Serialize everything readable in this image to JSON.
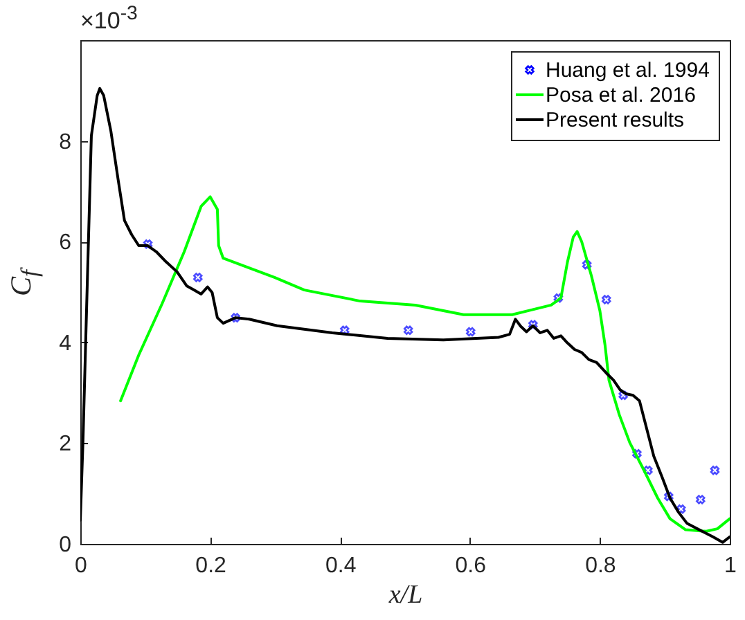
{
  "chart_data": {
    "type": "line",
    "xlabel": "x/L",
    "ylabel": "C$_{f}$",
    "annotations": [
      "×10$^{-3}$"
    ],
    "xlim": [
      0,
      1
    ],
    "xticks": [
      0,
      0.2,
      0.4,
      0.6,
      0.8,
      1
    ],
    "ylim": [
      0,
      10
    ],
    "yticks": [
      0,
      2,
      4,
      6,
      8
    ],
    "grid": false,
    "legend": "top right",
    "series": [
      {
        "name": "Huang et al. 1994",
        "type": "scatter",
        "marker": "cross",
        "color": "#0000ff",
        "x": [
          0.104,
          0.181,
          0.239,
          0.407,
          0.505,
          0.601,
          0.697,
          0.736,
          0.78,
          0.81,
          0.836,
          0.857,
          0.874,
          0.906,
          0.925,
          0.955,
          0.977
        ],
        "values": [
          5.95,
          5.29,
          4.49,
          4.24,
          4.24,
          4.21,
          4.35,
          4.88,
          5.54,
          4.85,
          2.95,
          1.79,
          1.46,
          0.94,
          0.69,
          0.88,
          1.46
        ]
      },
      {
        "name": "Posa et al. 2016",
        "color": "#00ff00",
        "x": [
          0.062,
          0.09,
          0.126,
          0.16,
          0.186,
          0.2,
          0.211,
          0.213,
          0.22,
          0.299,
          0.345,
          0.431,
          0.516,
          0.59,
          0.665,
          0.725,
          0.74,
          0.75,
          0.759,
          0.765,
          0.772,
          0.787,
          0.8,
          0.808,
          0.814,
          0.83,
          0.846,
          0.868,
          0.889,
          0.908,
          0.932,
          0.964,
          0.981,
          1.0
        ],
        "values": [
          2.84,
          3.75,
          4.77,
          5.8,
          6.7,
          6.89,
          6.64,
          5.92,
          5.67,
          5.29,
          5.04,
          4.82,
          4.74,
          4.55,
          4.55,
          4.74,
          4.88,
          5.59,
          6.09,
          6.2,
          6.0,
          5.32,
          4.63,
          3.94,
          3.25,
          2.56,
          2.01,
          1.46,
          0.91,
          0.5,
          0.28,
          0.25,
          0.3,
          0.5
        ]
      },
      {
        "name": "Present results",
        "color": "#000000",
        "x": [
          0,
          0.004,
          0.011,
          0.017,
          0.026,
          0.03,
          0.036,
          0.047,
          0.058,
          0.068,
          0.079,
          0.09,
          0.096,
          0.104,
          0.117,
          0.132,
          0.149,
          0.164,
          0.175,
          0.186,
          0.196,
          0.203,
          0.211,
          0.22,
          0.239,
          0.26,
          0.303,
          0.388,
          0.473,
          0.559,
          0.644,
          0.661,
          0.67,
          0.678,
          0.687,
          0.697,
          0.708,
          0.719,
          0.729,
          0.74,
          0.75,
          0.761,
          0.772,
          0.783,
          0.795,
          0.81,
          0.821,
          0.831,
          0.84,
          0.851,
          0.861,
          0.872,
          0.883,
          0.896,
          0.908,
          0.921,
          0.934,
          0.953,
          0.974,
          0.989,
          1.0
        ],
        "values": [
          0.47,
          2,
          5.3,
          8.1,
          8.9,
          9.04,
          8.9,
          8.2,
          7.25,
          6.42,
          6.14,
          5.92,
          5.92,
          5.92,
          5.8,
          5.6,
          5.4,
          5.12,
          5.04,
          4.96,
          5.1,
          4.99,
          4.49,
          4.38,
          4.49,
          4.46,
          4.33,
          4.19,
          4.08,
          4.05,
          4.1,
          4.16,
          4.46,
          4.32,
          4.21,
          4.33,
          4.19,
          4.24,
          4.08,
          4.13,
          3.99,
          3.86,
          3.8,
          3.66,
          3.6,
          3.39,
          3.25,
          3.06,
          2.98,
          2.95,
          2.84,
          2.29,
          1.74,
          1.32,
          0.91,
          0.63,
          0.41,
          0.28,
          0.14,
          0.03,
          0.14
        ]
      }
    ]
  }
}
